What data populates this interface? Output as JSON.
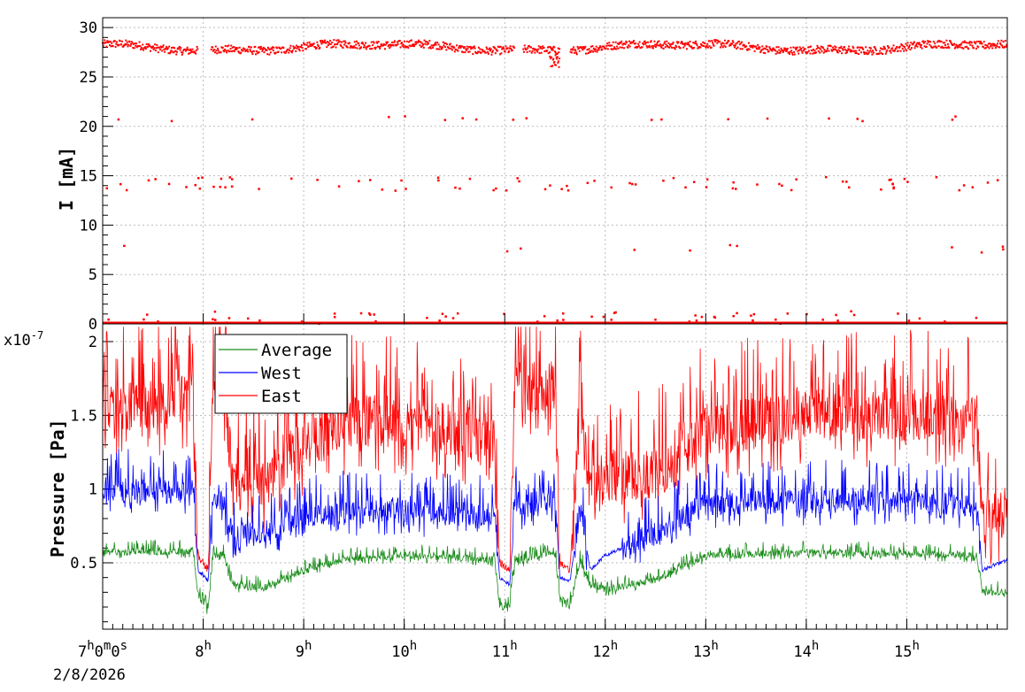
{
  "colors": {
    "east": "#ff0000",
    "west": "#0000ff",
    "average": "#1a8c1a",
    "grid": "#bbbbbb",
    "frame": "#000000"
  },
  "chart_data": [
    {
      "type": "scatter",
      "ylabel": "I [mA]",
      "ylim": [
        0,
        31
      ],
      "yticks": [
        0,
        5,
        10,
        15,
        20,
        25,
        30
      ],
      "ytick_labels": [
        "0",
        "5",
        "10",
        "15",
        "20",
        "25",
        "30"
      ],
      "grid": true,
      "series": [
        {
          "color": "red",
          "band_main": [
            27.6,
            28.4
          ],
          "band_zero": 0,
          "note_levels": [
            14.2,
            20.8,
            7.6,
            1.0
          ]
        }
      ]
    },
    {
      "type": "line",
      "ylabel": "Pressure [Pa]",
      "yscale_label": "x10",
      "yscale_exp": "-7",
      "ylim": [
        0.05,
        2.12
      ],
      "yticks": [
        0.5,
        1,
        1.5,
        2
      ],
      "ytick_labels": [
        "0.5",
        "1",
        "1.5",
        "2"
      ],
      "grid": true,
      "legend": {
        "position": "top-left",
        "entries": [
          "Average",
          "West",
          "East"
        ]
      },
      "series": [
        {
          "name": "Average",
          "color": "green",
          "x_hours": [
            7.0,
            7.9,
            7.95,
            8.05,
            8.1,
            8.2,
            8.3,
            8.6,
            9.0,
            9.4,
            10.0,
            10.9,
            10.95,
            11.05,
            11.1,
            11.5,
            11.55,
            11.65,
            11.75,
            11.85,
            12.0,
            12.5,
            13.0,
            14.0,
            15.0,
            15.7,
            15.75,
            16.0
          ],
          "y": [
            0.57,
            0.58,
            0.28,
            0.18,
            0.55,
            0.56,
            0.35,
            0.33,
            0.45,
            0.52,
            0.55,
            0.52,
            0.2,
            0.22,
            0.5,
            0.58,
            0.25,
            0.22,
            0.52,
            0.35,
            0.32,
            0.38,
            0.55,
            0.57,
            0.56,
            0.55,
            0.3,
            0.3
          ]
        },
        {
          "name": "West",
          "color": "blue",
          "x_hours": [
            7.0,
            7.9,
            7.95,
            8.05,
            8.1,
            8.2,
            8.3,
            8.6,
            9.0,
            9.4,
            10.0,
            10.9,
            10.95,
            11.05,
            11.1,
            11.5,
            11.55,
            11.65,
            11.75,
            11.85,
            12.0,
            12.5,
            13.0,
            14.0,
            15.0,
            15.7,
            15.75,
            16.0
          ],
          "y": [
            1.0,
            0.98,
            0.45,
            0.38,
            0.95,
            0.9,
            0.68,
            0.7,
            0.82,
            0.85,
            0.85,
            0.82,
            0.4,
            0.35,
            0.88,
            0.92,
            0.4,
            0.38,
            0.88,
            0.45,
            0.55,
            0.7,
            0.9,
            0.92,
            0.92,
            0.88,
            0.45,
            0.52
          ]
        },
        {
          "name": "East",
          "color": "red",
          "x_hours": [
            7.0,
            7.9,
            7.95,
            8.05,
            8.1,
            8.2,
            8.3,
            8.6,
            9.0,
            9.4,
            10.0,
            10.9,
            10.95,
            11.05,
            11.1,
            11.5,
            11.55,
            11.65,
            11.75,
            11.85,
            12.0,
            12.5,
            13.0,
            14.0,
            15.0,
            15.7,
            15.75,
            16.0
          ],
          "y": [
            1.55,
            1.6,
            0.55,
            0.45,
            1.72,
            1.75,
            1.0,
            1.05,
            1.3,
            1.45,
            1.45,
            1.35,
            0.5,
            0.45,
            1.7,
            1.7,
            0.5,
            0.45,
            1.65,
            1.0,
            1.1,
            1.1,
            1.4,
            1.5,
            1.5,
            1.45,
            0.8,
            0.8
          ]
        }
      ]
    }
  ],
  "x_axis": {
    "start_hour": 7.0,
    "end_hour": 16.0,
    "date_label": "2/8/2026",
    "ticks": [
      {
        "hour": 7,
        "label_main": "7",
        "label_sup": "h",
        "label_rest": "0",
        "label_sup2": "m",
        "label_rest2": "0",
        "label_sup3": "s"
      },
      {
        "hour": 8,
        "label_main": "8",
        "label_sup": "h"
      },
      {
        "hour": 9,
        "label_main": "9",
        "label_sup": "h"
      },
      {
        "hour": 10,
        "label_main": "10",
        "label_sup": "h"
      },
      {
        "hour": 11,
        "label_main": "11",
        "label_sup": "h"
      },
      {
        "hour": 12,
        "label_main": "12",
        "label_sup": "h"
      },
      {
        "hour": 13,
        "label_main": "13",
        "label_sup": "h"
      },
      {
        "hour": 14,
        "label_main": "14",
        "label_sup": "h"
      },
      {
        "hour": 15,
        "label_main": "15",
        "label_sup": "h"
      }
    ]
  }
}
